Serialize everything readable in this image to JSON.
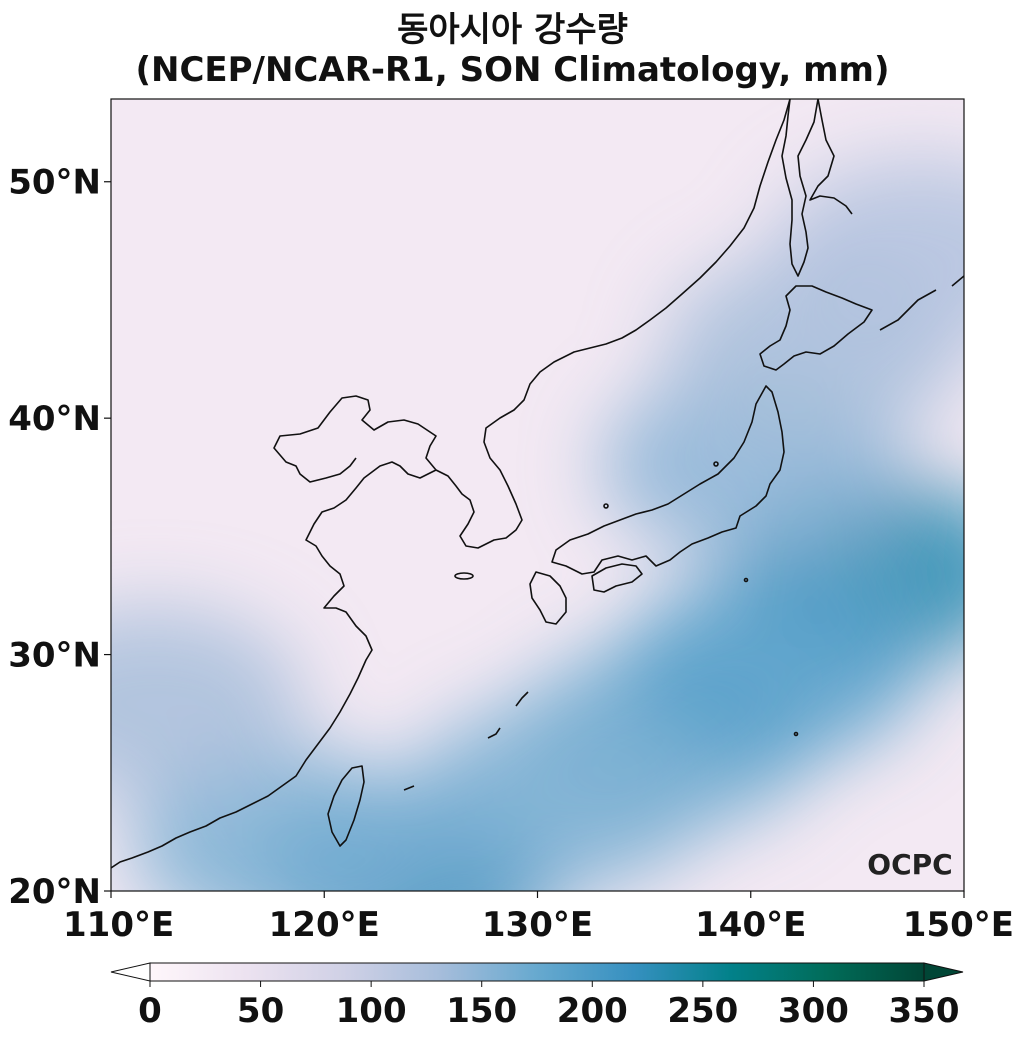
{
  "title": "동아시아 강수량",
  "subtitle": "(NCEP/NCAR-R1, SON Climatology, mm)",
  "map": {
    "lon_range": [
      110,
      150
    ],
    "lat_range": [
      20,
      53.5
    ],
    "lat_ticks": [
      {
        "value": 20,
        "label": "20°N"
      },
      {
        "value": 30,
        "label": "30°N"
      },
      {
        "value": 40,
        "label": "40°N"
      },
      {
        "value": 50,
        "label": "50°N"
      }
    ],
    "lon_ticks": [
      {
        "value": 110,
        "label": "110°E"
      },
      {
        "value": 120,
        "label": "120°E"
      },
      {
        "value": 130,
        "label": "130°E"
      },
      {
        "value": 140,
        "label": "140°E"
      },
      {
        "value": 150,
        "label": "150°E"
      }
    ],
    "field_blobs": [
      {
        "lon": 146,
        "lat": 33.5,
        "value": 230
      },
      {
        "lon": 124,
        "lat": 20.5,
        "value": 220
      },
      {
        "lon": 136,
        "lat": 26.5,
        "value": 170
      },
      {
        "lon": 141,
        "lat": 29.5,
        "value": 190
      },
      {
        "lon": 131,
        "lat": 24,
        "value": 160
      },
      {
        "lon": 118,
        "lat": 22,
        "value": 160
      },
      {
        "lon": 112,
        "lat": 28,
        "value": 130
      },
      {
        "lon": 140,
        "lat": 38,
        "value": 150
      },
      {
        "lon": 143,
        "lat": 43,
        "value": 130
      },
      {
        "lon": 148,
        "lat": 47,
        "value": 120
      }
    ],
    "logo_text": "OCPC"
  },
  "colorbar": {
    "min": 0,
    "max": 350,
    "extend": "both",
    "colormap": [
      "#fff7fb",
      "#ece2f0",
      "#d0d1e6",
      "#a6bddb",
      "#67a9cf",
      "#3690c0",
      "#02818a",
      "#016c59",
      "#014636"
    ],
    "ticks": [
      {
        "value": 0,
        "label": "0"
      },
      {
        "value": 50,
        "label": "50"
      },
      {
        "value": 100,
        "label": "100"
      },
      {
        "value": 150,
        "label": "150"
      },
      {
        "value": 200,
        "label": "200"
      },
      {
        "value": 250,
        "label": "250"
      },
      {
        "value": 300,
        "label": "300"
      },
      {
        "value": 350,
        "label": "350"
      }
    ]
  }
}
